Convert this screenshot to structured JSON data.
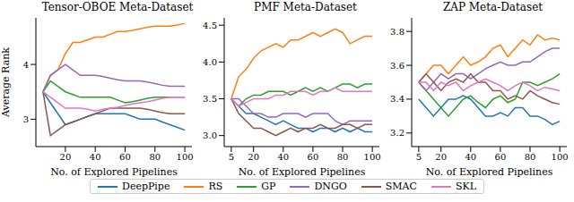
{
  "chart_data": [
    {
      "type": "line",
      "title": "Tensor-OBOE Meta-Dataset",
      "x_label": "No. of Explored Pipelines",
      "y_label": "Average Rank",
      "legend": "bottom",
      "grid": false,
      "x": [
        5,
        10,
        15,
        20,
        25,
        30,
        35,
        40,
        45,
        50,
        55,
        60,
        65,
        70,
        75,
        80,
        85,
        90,
        95,
        100
      ],
      "xlim": [
        0.25,
        104.75
      ],
      "xticks": [
        20,
        40,
        60,
        80,
        100
      ],
      "ylim": [
        2.5,
        4.85
      ],
      "yticks": [
        3,
        4
      ],
      "series": [
        {
          "name": "DeepPipe",
          "color": "#1f77b4",
          "values": [
            3.5,
            3.3,
            3.1,
            2.9,
            2.95,
            3.0,
            3.05,
            3.1,
            3.1,
            3.1,
            3.1,
            3.1,
            3.05,
            3.0,
            3.0,
            3.0,
            2.95,
            2.9,
            2.85,
            2.8
          ]
        },
        {
          "name": "RS",
          "color": "#ff7f0e",
          "values": [
            3.5,
            3.8,
            3.9,
            4.2,
            4.4,
            4.4,
            4.45,
            4.5,
            4.5,
            4.55,
            4.6,
            4.6,
            4.62,
            4.65,
            4.68,
            4.7,
            4.7,
            4.7,
            4.72,
            4.75
          ]
        },
        {
          "name": "GP",
          "color": "#2ca02c",
          "values": [
            3.5,
            3.7,
            3.6,
            3.5,
            3.45,
            3.4,
            3.4,
            3.4,
            3.4,
            3.4,
            3.35,
            3.3,
            3.32,
            3.35,
            3.38,
            3.4,
            3.4,
            3.4,
            3.4,
            3.4
          ]
        },
        {
          "name": "DNGO",
          "color": "#9467bd",
          "values": [
            3.5,
            3.8,
            3.9,
            4.0,
            3.9,
            3.8,
            3.8,
            3.8,
            3.78,
            3.75,
            3.72,
            3.7,
            3.7,
            3.7,
            3.68,
            3.65,
            3.62,
            3.6,
            3.6,
            3.6
          ]
        },
        {
          "name": "SMAC",
          "color": "#8c564b",
          "values": [
            3.5,
            2.7,
            2.8,
            2.9,
            2.95,
            3.0,
            3.05,
            3.1,
            3.15,
            3.2,
            3.2,
            3.2,
            3.2,
            3.2,
            3.18,
            3.15,
            3.12,
            3.1,
            3.1,
            3.1
          ]
        },
        {
          "name": "SKL",
          "color": "#e377c2",
          "values": [
            3.5,
            3.4,
            3.3,
            3.2,
            3.2,
            3.2,
            3.18,
            3.15,
            3.18,
            3.2,
            3.22,
            3.25,
            3.28,
            3.3,
            3.32,
            3.35,
            3.38,
            3.4,
            3.4,
            3.4
          ]
        }
      ]
    },
    {
      "type": "line",
      "title": "PMF Meta-Dataset",
      "x_label": "No. of Explored Pipelines",
      "grid": false,
      "x": [
        5,
        10,
        15,
        20,
        25,
        30,
        35,
        40,
        45,
        50,
        55,
        60,
        65,
        70,
        75,
        80,
        85,
        90,
        95,
        100
      ],
      "xlim": [
        0.25,
        104.75
      ],
      "xticks": [
        5,
        20,
        40,
        60,
        80,
        100
      ],
      "ylim": [
        2.85,
        4.6
      ],
      "yticks": [
        {
          "value": 3,
          "label": "3.0"
        },
        3.5,
        {
          "value": 4,
          "label": "4.0"
        },
        4.5
      ],
      "series": [
        {
          "name": "DeepPipe",
          "color": "#1f77b4",
          "values": [
            3.5,
            3.4,
            3.3,
            3.3,
            3.25,
            3.2,
            3.15,
            3.2,
            3.15,
            3.1,
            3.1,
            3.05,
            3.1,
            3.1,
            3.05,
            3.1,
            3.05,
            3.1,
            3.05,
            3.05
          ]
        },
        {
          "name": "RS",
          "color": "#ff7f0e",
          "values": [
            3.5,
            3.8,
            3.9,
            4.05,
            4.15,
            4.2,
            4.25,
            4.2,
            4.3,
            4.3,
            4.35,
            4.4,
            4.35,
            4.4,
            4.45,
            4.4,
            4.25,
            4.3,
            4.35,
            4.35
          ]
        },
        {
          "name": "GP",
          "color": "#2ca02c",
          "values": [
            3.5,
            3.4,
            3.5,
            3.55,
            3.55,
            3.6,
            3.6,
            3.6,
            3.55,
            3.6,
            3.65,
            3.6,
            3.65,
            3.6,
            3.65,
            3.7,
            3.7,
            3.65,
            3.7,
            3.7
          ]
        },
        {
          "name": "DNGO",
          "color": "#9467bd",
          "values": [
            3.5,
            3.5,
            3.4,
            3.3,
            3.3,
            3.25,
            3.25,
            3.3,
            3.3,
            3.3,
            3.25,
            3.3,
            3.3,
            3.3,
            3.2,
            3.15,
            3.2,
            3.2,
            3.2,
            3.2
          ]
        },
        {
          "name": "SMAC",
          "color": "#8c564b",
          "values": [
            3.5,
            3.3,
            3.2,
            3.1,
            3.1,
            3.05,
            3.0,
            3.05,
            3.1,
            3.05,
            3.1,
            3.1,
            3.15,
            3.1,
            3.1,
            3.15,
            3.15,
            3.1,
            3.15,
            3.15
          ]
        },
        {
          "name": "SKL",
          "color": "#e377c2",
          "values": [
            3.5,
            3.4,
            3.45,
            3.5,
            3.5,
            3.5,
            3.55,
            3.55,
            3.6,
            3.6,
            3.6,
            3.55,
            3.6,
            3.6,
            3.65,
            3.6,
            3.6,
            3.6,
            3.6,
            3.6
          ]
        }
      ]
    },
    {
      "type": "line",
      "title": "ZAP Meta-Dataset",
      "x_label": "No. of Explored Pipelines",
      "grid": false,
      "x": [
        5,
        10,
        15,
        20,
        25,
        30,
        35,
        40,
        45,
        50,
        55,
        60,
        65,
        70,
        75,
        80,
        85,
        90,
        95,
        100
      ],
      "xlim": [
        0.25,
        104.75
      ],
      "xticks": [
        5,
        20,
        40,
        60,
        80,
        100
      ],
      "ylim": [
        3.12,
        3.88
      ],
      "yticks": [
        3.2,
        3.4,
        3.6,
        3.8
      ],
      "series": [
        {
          "name": "DeepPipe",
          "color": "#1f77b4",
          "values": [
            3.4,
            3.35,
            3.3,
            3.35,
            3.4,
            3.4,
            3.42,
            3.4,
            3.35,
            3.3,
            3.3,
            3.32,
            3.3,
            3.35,
            3.35,
            3.3,
            3.3,
            3.28,
            3.25,
            3.27
          ]
        },
        {
          "name": "RS",
          "color": "#ff7f0e",
          "values": [
            3.5,
            3.55,
            3.6,
            3.6,
            3.55,
            3.6,
            3.65,
            3.6,
            3.62,
            3.65,
            3.7,
            3.72,
            3.65,
            3.7,
            3.75,
            3.72,
            3.78,
            3.75,
            3.76,
            3.75
          ]
        },
        {
          "name": "GP",
          "color": "#2ca02c",
          "values": [
            3.5,
            3.45,
            3.4,
            3.35,
            3.3,
            3.35,
            3.4,
            3.42,
            3.38,
            3.35,
            3.4,
            3.42,
            3.38,
            3.4,
            3.5,
            3.5,
            3.48,
            3.5,
            3.52,
            3.55
          ]
        },
        {
          "name": "DNGO",
          "color": "#9467bd",
          "values": [
            3.5,
            3.45,
            3.5,
            3.55,
            3.52,
            3.55,
            3.55,
            3.52,
            3.55,
            3.58,
            3.6,
            3.62,
            3.6,
            3.6,
            3.62,
            3.62,
            3.65,
            3.68,
            3.7,
            3.7
          ]
        },
        {
          "name": "SMAC",
          "color": "#8c564b",
          "values": [
            3.5,
            3.55,
            3.5,
            3.45,
            3.5,
            3.52,
            3.5,
            3.55,
            3.5,
            3.5,
            3.45,
            3.45,
            3.4,
            3.42,
            3.4,
            3.45,
            3.42,
            3.4,
            3.38,
            3.37
          ]
        },
        {
          "name": "SKL",
          "color": "#e377c2",
          "values": [
            3.5,
            3.5,
            3.45,
            3.5,
            3.48,
            3.5,
            3.45,
            3.48,
            3.5,
            3.52,
            3.5,
            3.48,
            3.45,
            3.48,
            3.5,
            3.48,
            3.45,
            3.47,
            3.46,
            3.45
          ]
        }
      ]
    }
  ]
}
